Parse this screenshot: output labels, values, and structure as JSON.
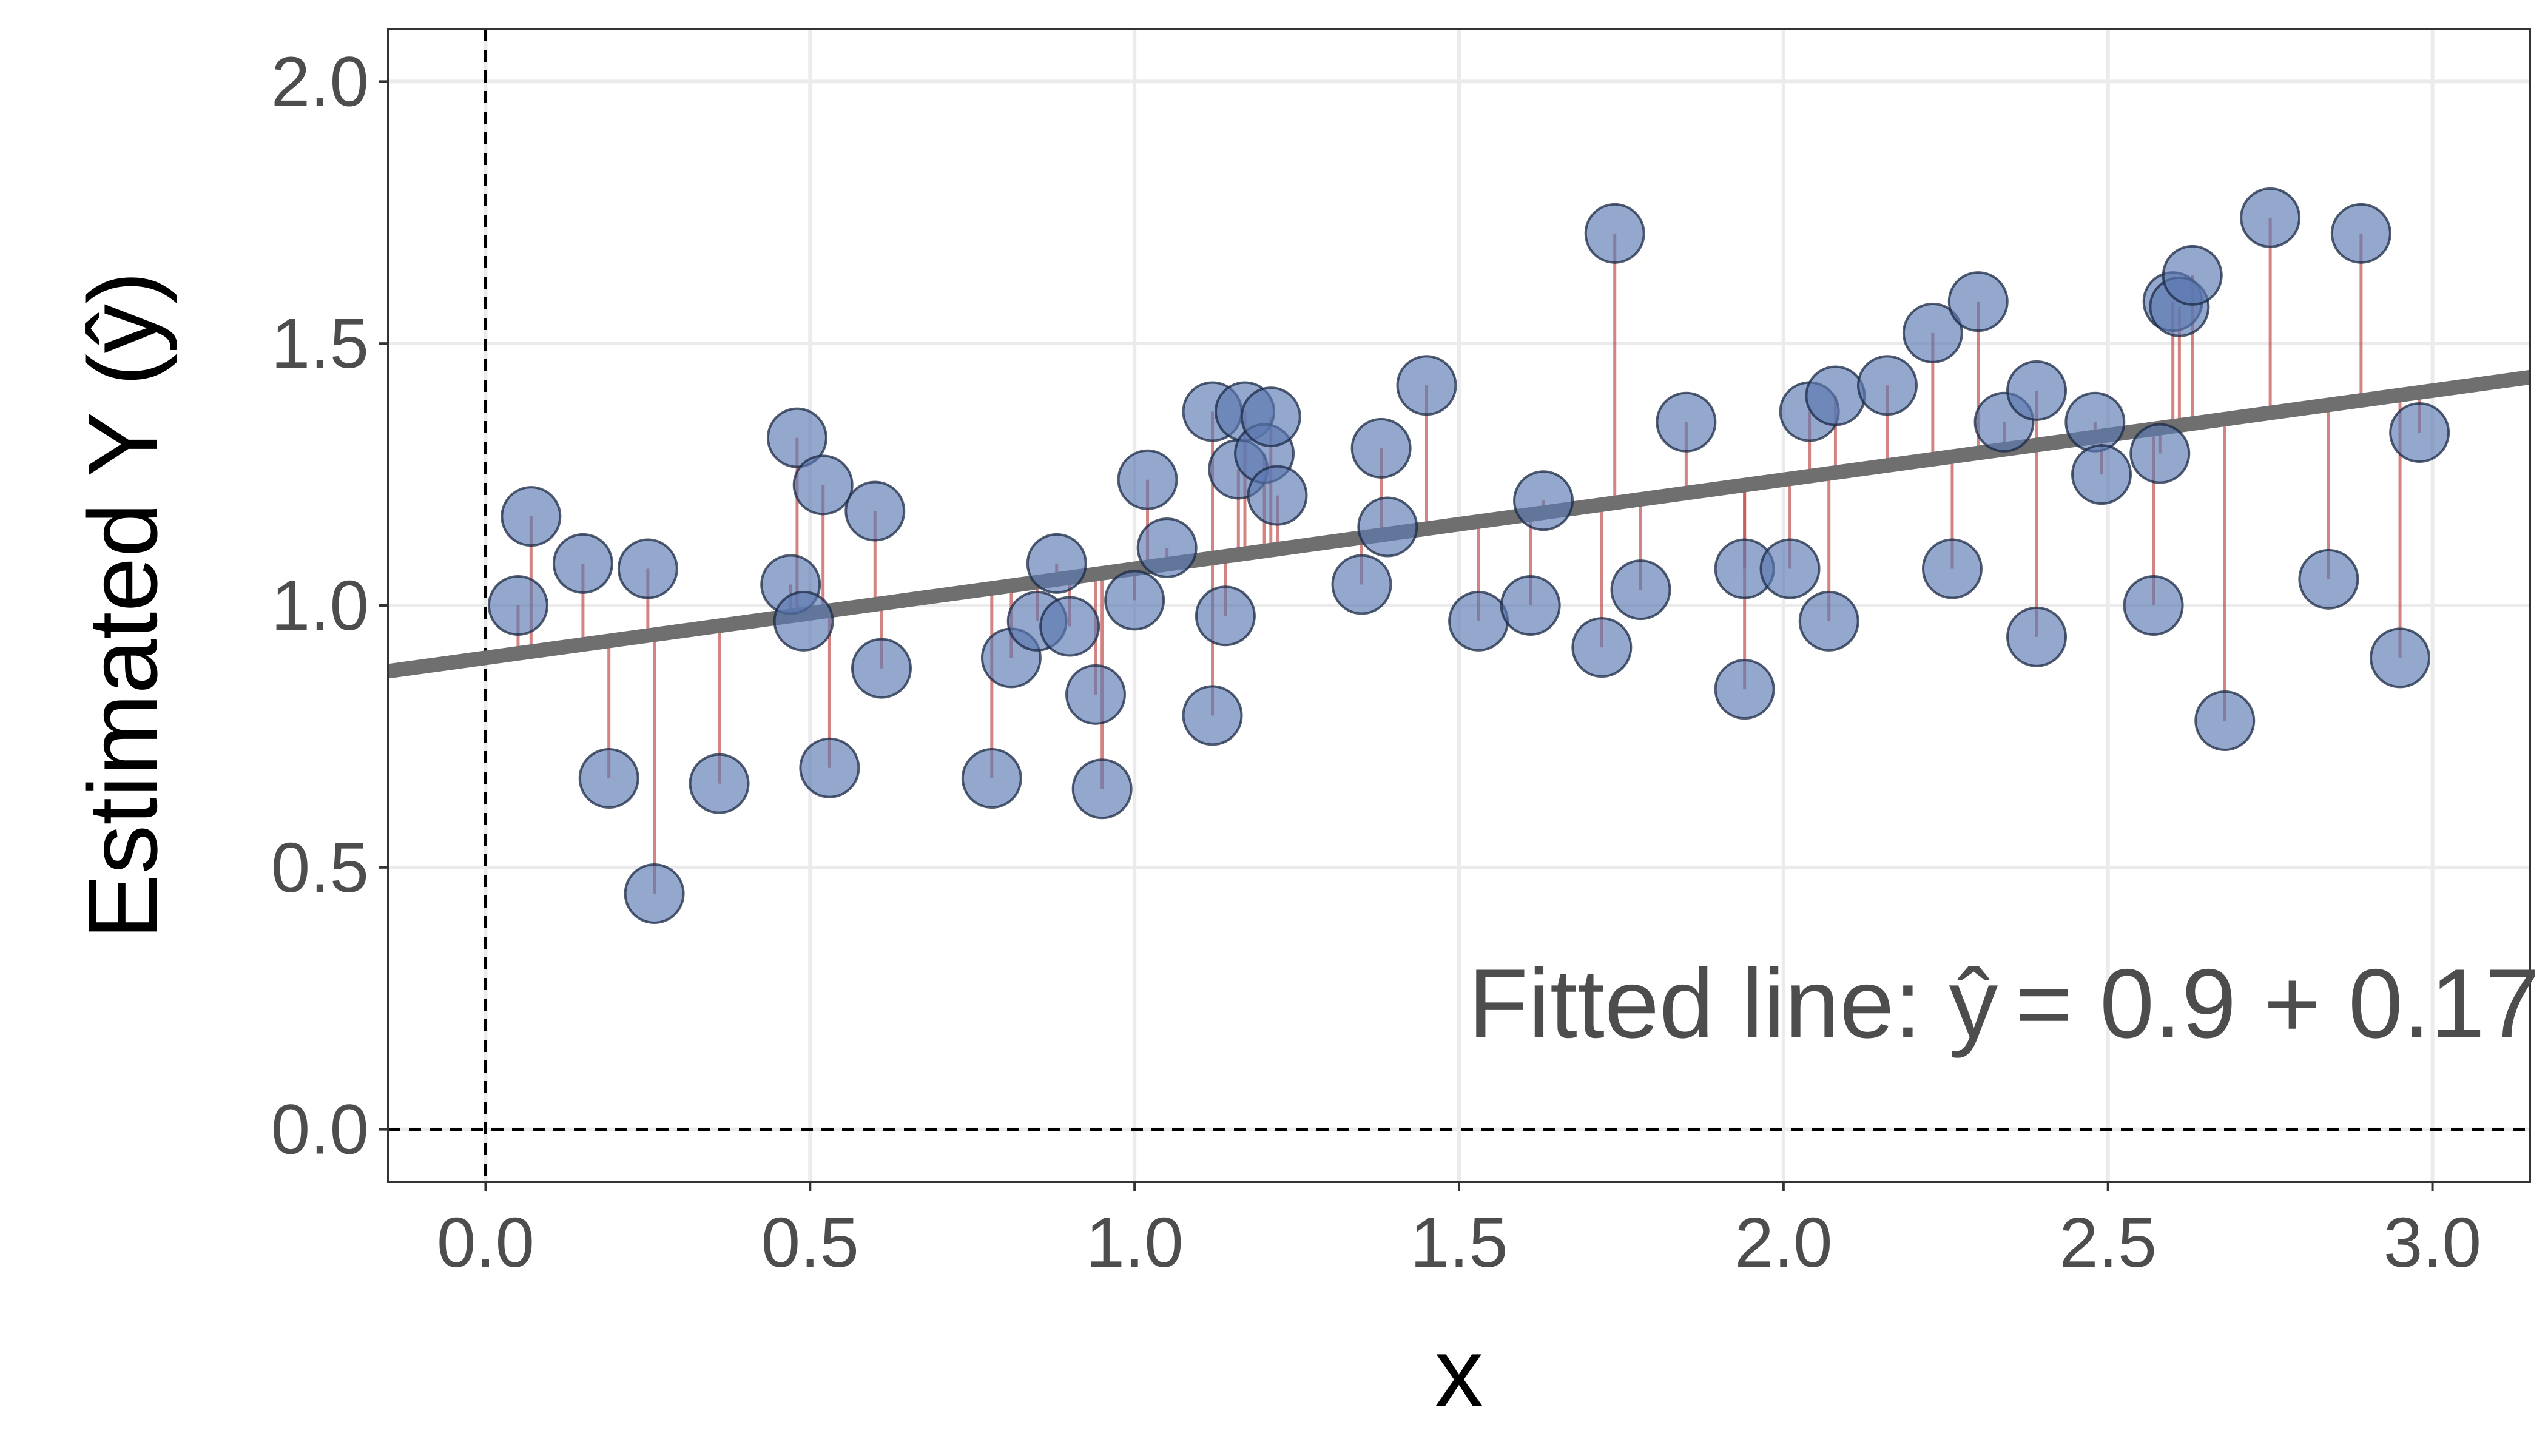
{
  "chart_data": {
    "type": "scatter",
    "xlabel": "x",
    "ylabel": "Estimated Y (ŷ)",
    "xlim": [
      -0.15,
      3.15
    ],
    "ylim": [
      -0.1,
      2.1
    ],
    "x_ticks": [
      "0.0",
      "0.5",
      "1.0",
      "1.5",
      "2.0",
      "2.5",
      "3.0"
    ],
    "y_ticks": [
      "0.0",
      "0.5",
      "1.0",
      "1.5",
      "2.0"
    ],
    "grid": true,
    "reference_lines": {
      "x": 0,
      "y": 0
    },
    "fitted_line": {
      "intercept": 0.9,
      "slope": 0.17
    },
    "annotation": {
      "prefix": "Fitted line: ",
      "yhat": "ŷ",
      "equation": "= 0.9 + 0.17"
    },
    "colors": {
      "points": "#5a78b0",
      "point_edge": "#1c2a44",
      "line": "#6f6f6f",
      "residual": "#c0504d",
      "grid": "#ebebeb"
    },
    "points": [
      {
        "x": 0.05,
        "y": 1.0
      },
      {
        "x": 0.07,
        "y": 1.17
      },
      {
        "x": 0.15,
        "y": 1.08
      },
      {
        "x": 0.19,
        "y": 0.67
      },
      {
        "x": 0.25,
        "y": 1.07
      },
      {
        "x": 0.26,
        "y": 0.45
      },
      {
        "x": 0.36,
        "y": 0.66
      },
      {
        "x": 0.47,
        "y": 1.04
      },
      {
        "x": 0.48,
        "y": 1.32
      },
      {
        "x": 0.49,
        "y": 0.97
      },
      {
        "x": 0.52,
        "y": 1.23
      },
      {
        "x": 0.53,
        "y": 0.69
      },
      {
        "x": 0.6,
        "y": 1.18
      },
      {
        "x": 0.61,
        "y": 0.88
      },
      {
        "x": 0.78,
        "y": 0.67
      },
      {
        "x": 0.81,
        "y": 0.9
      },
      {
        "x": 0.85,
        "y": 0.97
      },
      {
        "x": 0.88,
        "y": 1.08
      },
      {
        "x": 0.9,
        "y": 0.96
      },
      {
        "x": 0.94,
        "y": 0.83
      },
      {
        "x": 0.95,
        "y": 0.65
      },
      {
        "x": 1.0,
        "y": 1.01
      },
      {
        "x": 1.02,
        "y": 1.24
      },
      {
        "x": 1.05,
        "y": 1.11
      },
      {
        "x": 1.12,
        "y": 1.37
      },
      {
        "x": 1.12,
        "y": 0.79
      },
      {
        "x": 1.14,
        "y": 0.98
      },
      {
        "x": 1.16,
        "y": 1.26
      },
      {
        "x": 1.17,
        "y": 1.37
      },
      {
        "x": 1.2,
        "y": 1.29
      },
      {
        "x": 1.21,
        "y": 1.36
      },
      {
        "x": 1.22,
        "y": 1.21
      },
      {
        "x": 1.35,
        "y": 1.04
      },
      {
        "x": 1.38,
        "y": 1.3
      },
      {
        "x": 1.39,
        "y": 1.15
      },
      {
        "x": 1.45,
        "y": 1.42
      },
      {
        "x": 1.53,
        "y": 0.97
      },
      {
        "x": 1.61,
        "y": 1.0
      },
      {
        "x": 1.63,
        "y": 1.2
      },
      {
        "x": 1.72,
        "y": 0.92
      },
      {
        "x": 1.74,
        "y": 1.71
      },
      {
        "x": 1.78,
        "y": 1.03
      },
      {
        "x": 1.85,
        "y": 1.35
      },
      {
        "x": 1.94,
        "y": 0.84
      },
      {
        "x": 1.94,
        "y": 1.07
      },
      {
        "x": 2.01,
        "y": 1.07
      },
      {
        "x": 2.04,
        "y": 1.37
      },
      {
        "x": 2.07,
        "y": 0.97
      },
      {
        "x": 2.08,
        "y": 1.4
      },
      {
        "x": 2.16,
        "y": 1.42
      },
      {
        "x": 2.23,
        "y": 1.52
      },
      {
        "x": 2.26,
        "y": 1.07
      },
      {
        "x": 2.3,
        "y": 1.58
      },
      {
        "x": 2.34,
        "y": 1.35
      },
      {
        "x": 2.39,
        "y": 0.94
      },
      {
        "x": 2.39,
        "y": 1.41
      },
      {
        "x": 2.48,
        "y": 1.35
      },
      {
        "x": 2.49,
        "y": 1.25
      },
      {
        "x": 2.57,
        "y": 1.0
      },
      {
        "x": 2.58,
        "y": 1.29
      },
      {
        "x": 2.6,
        "y": 1.58
      },
      {
        "x": 2.61,
        "y": 1.57
      },
      {
        "x": 2.63,
        "y": 1.63
      },
      {
        "x": 2.68,
        "y": 0.78
      },
      {
        "x": 2.75,
        "y": 1.74
      },
      {
        "x": 2.84,
        "y": 1.05
      },
      {
        "x": 2.89,
        "y": 1.71
      },
      {
        "x": 2.95,
        "y": 0.9
      },
      {
        "x": 2.98,
        "y": 1.33
      }
    ]
  }
}
